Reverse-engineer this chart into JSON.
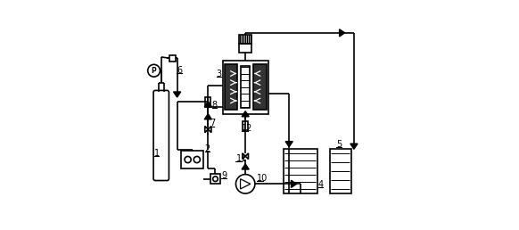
{
  "bg_color": "#ffffff",
  "line_color": "#000000",
  "figsize": [
    5.82,
    2.58
  ],
  "dpi": 100
}
